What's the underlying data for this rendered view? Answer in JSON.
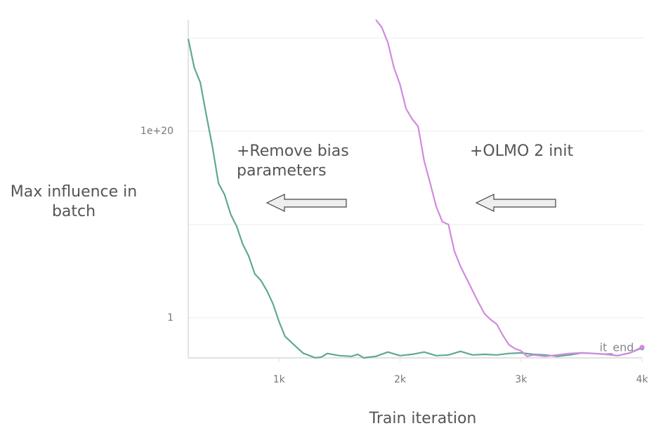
{
  "chart_data": {
    "type": "line",
    "x_label": "Train iteration",
    "y_label": "Max influence in batch",
    "log_y": true,
    "grid": true,
    "xlim": [
      250,
      4000
    ],
    "xticks": [
      {
        "value": 1000,
        "label": "1k"
      },
      {
        "value": 2000,
        "label": "2k"
      },
      {
        "value": 3000,
        "label": "3k"
      },
      {
        "value": 4000,
        "label": "4k"
      }
    ],
    "ylim": [
      5e-05,
      9e+31
    ],
    "yticks": [
      1,
      {
        "value": 10000000000.0,
        "label": null
      },
      {
        "value": 1e+20,
        "label": "1e+20"
      },
      {
        "value": 1e+30,
        "label": null
      }
    ],
    "annotations": [
      "+Remove bias parameters",
      "+OLMO 2 init",
      "it_end"
    ],
    "series": [
      {
        "color": "#5fa896",
        "x": [
          250,
          300,
          350,
          400,
          450,
          500,
          550,
          600,
          650,
          700,
          750,
          800,
          850,
          900,
          950,
          1000,
          1050,
          1100,
          1150,
          1200,
          1300,
          1350,
          1400,
          1500,
          1600,
          1650,
          1700,
          1800,
          1900,
          2000,
          2100,
          2200,
          2300,
          2400,
          2500,
          2600,
          2700,
          2800,
          2900,
          3000,
          3100,
          3200,
          3300,
          3400,
          3500,
          3600,
          3700,
          3800,
          3900,
          4000
        ],
        "values": [
          7.9e+29,
          6.3e+26,
          1.6e+25,
          5e+21,
          2e+18,
          250000000000000.0,
          16000000000000.0,
          130000000000.0,
          6300000000.0,
          79000000.0,
          4000000.0,
          50000.0,
          10000.0,
          790,
          32,
          0.4,
          0.01,
          0.0025,
          0.00063,
          0.00016,
          5.1e-05,
          6.2e-05,
          0.00015,
          8.7e-05,
          7.3e-05,
          0.00012,
          5.1e-05,
          7.3e-05,
          0.00021,
          8.7e-05,
          0.00012,
          0.00021,
          8.7e-05,
          0.000104,
          0.00025,
          0.000104,
          0.00012,
          0.000104,
          0.00015,
          0.00017,
          0.00012,
          0.000104,
          7.3e-05,
          0.000104,
          0.00017,
          0.00015,
          0.00012,
          8.7e-05,
          0.00017,
          0.00059
        ]
      },
      {
        "color": "#d08ae0",
        "x": [
          1800,
          1850,
          1900,
          1950,
          2000,
          2050,
          2100,
          2150,
          2200,
          2250,
          2300,
          2350,
          2400,
          2450,
          2500,
          2550,
          2600,
          2650,
          2700,
          2750,
          2800,
          2850,
          2900,
          2950,
          3000,
          3050,
          3100,
          3200,
          3300,
          3400,
          3500,
          3600,
          3700,
          3800,
          3900,
          4000
        ],
        "values": [
          9e+31,
          1.3e+31,
          3.2e+29,
          6.3e+26,
          1e+25,
          2.5e+22,
          2e+21,
          3.2e+20,
          6.3e+16,
          250000000000000.0,
          790000000000.0,
          20000000000.0,
          10000000000.0,
          13000000.0,
          320000.0,
          16000.0,
          790,
          40,
          2.5,
          0.63,
          0.2,
          0.013,
          0.0013,
          0.00049,
          0.00029,
          7.3e-05,
          0.000104,
          7.3e-05,
          0.000104,
          0.00015,
          0.00017,
          0.00015,
          0.00012,
          8.7e-05,
          0.00017,
          0.00069
        ]
      }
    ]
  }
}
